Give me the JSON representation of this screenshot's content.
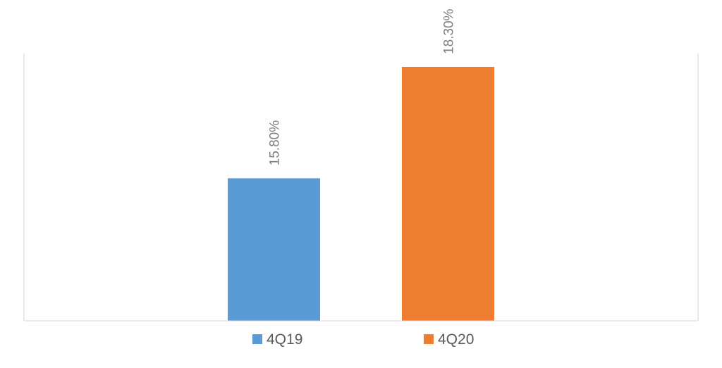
{
  "chart_data": {
    "type": "bar",
    "categories": [
      "4Q19",
      "4Q20"
    ],
    "values": [
      15.8,
      18.3
    ],
    "value_labels": [
      "15.80%",
      "18.30%"
    ],
    "unit": "%",
    "ylim": [
      12.6,
      18.3
    ],
    "grid": false,
    "legend_position": "bottom",
    "data_label_orientation": "vertical",
    "legend": [
      "4Q19",
      "4Q20"
    ],
    "colors": [
      "#5b9bd5",
      "#ed7d31"
    ]
  }
}
